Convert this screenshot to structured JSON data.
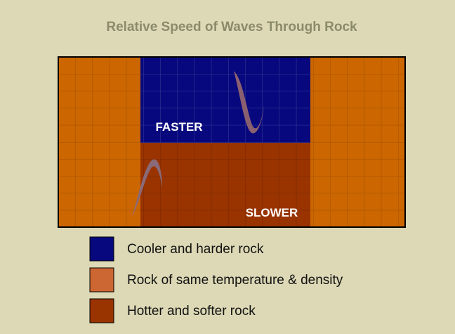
{
  "title": "Relative Speed of Waves Through Rock",
  "labels": {
    "faster": "FASTER",
    "slower": "SLOWER"
  },
  "legend": [
    {
      "label": "Cooler and harder rock"
    },
    {
      "label": "Rock of same temperature & density"
    },
    {
      "label": "Hotter and softer rock"
    }
  ]
}
